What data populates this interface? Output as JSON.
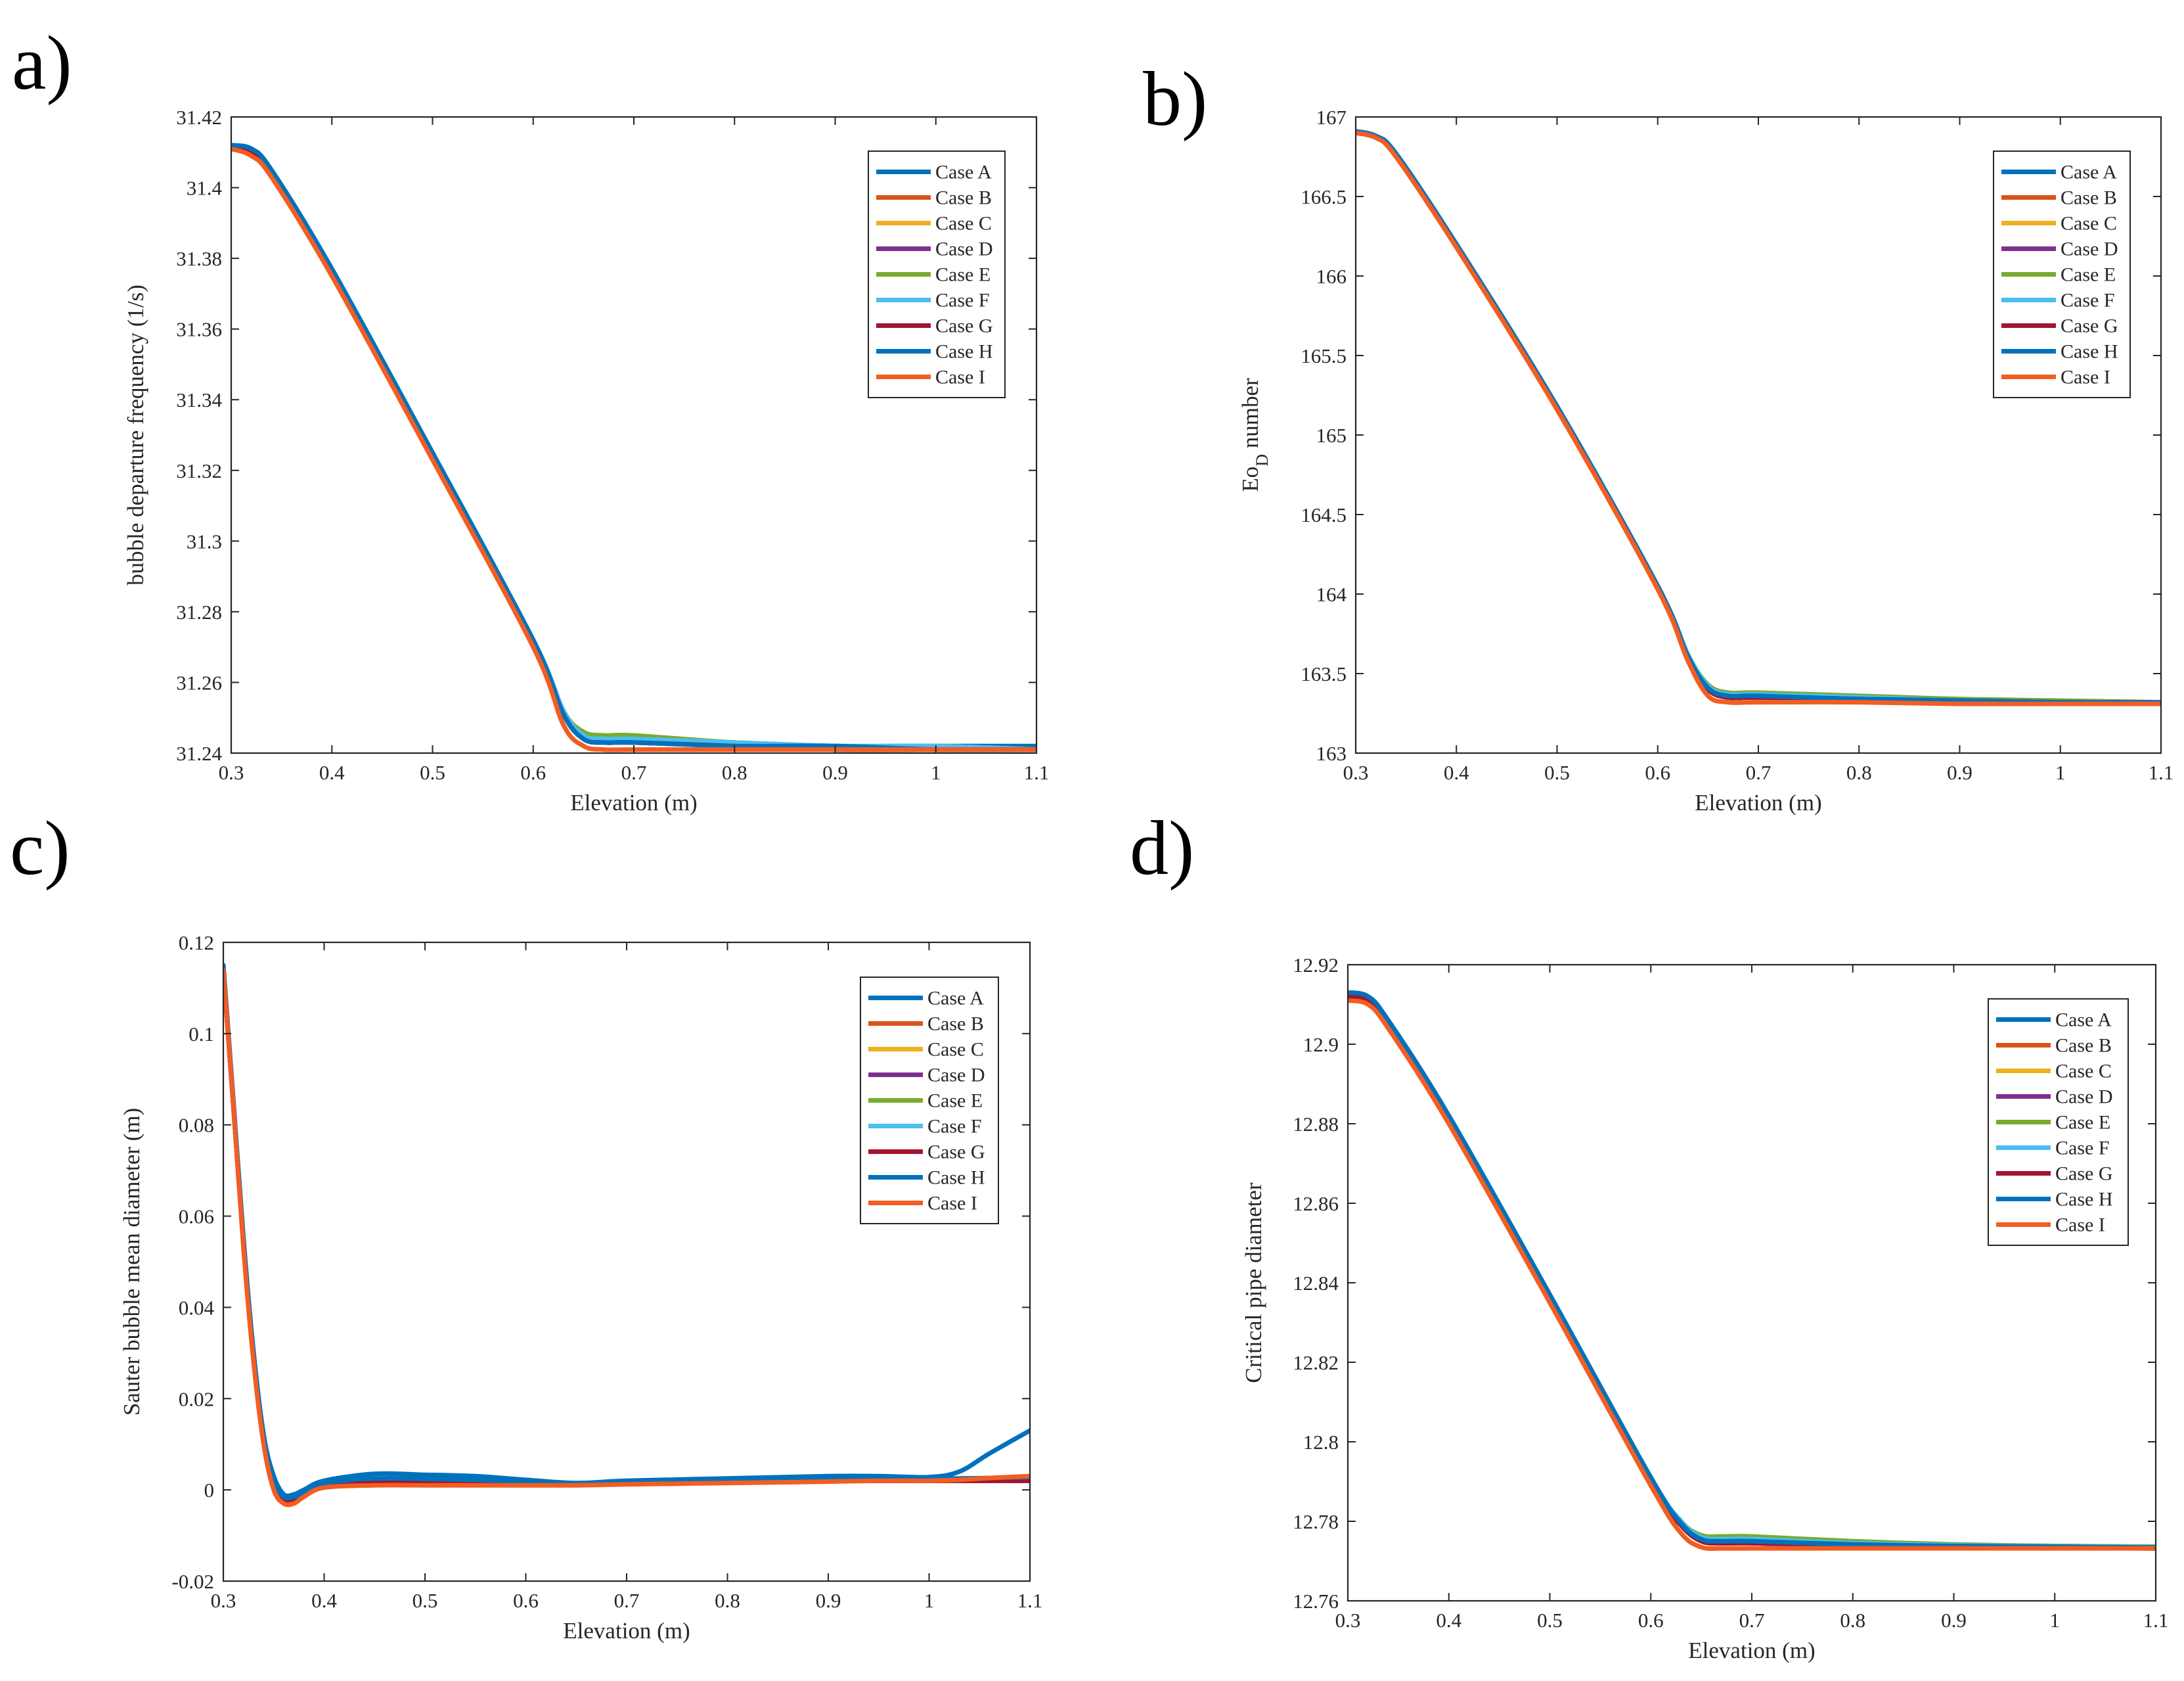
{
  "figure": {
    "panels": [
      "a)",
      "b)",
      "c)",
      "d)"
    ]
  },
  "legend": [
    "Case A",
    "Case B",
    "Case C",
    "Case D",
    "Case E",
    "Case F",
    "Case G",
    "Case H",
    "Case I"
  ],
  "colors": {
    "Case A": "#0072bd",
    "Case B": "#d95319",
    "Case C": "#edb120",
    "Case D": "#7e2f8e",
    "Case E": "#77ac30",
    "Case F": "#4dbeee",
    "Case G": "#a2142f",
    "Case H": "#0072bd",
    "Case I": "#f25d22",
    "axis": "#262626"
  },
  "chart_data": [
    {
      "type": "line",
      "panel": "a)",
      "xlabel": "Elevation (m)",
      "ylabel": "bubble departure frequency (1/s)",
      "xlim": [
        0.3,
        1.1
      ],
      "ylim": [
        31.24,
        31.42
      ],
      "xticks": [
        0.3,
        0.4,
        0.5,
        0.6,
        0.7,
        0.8,
        0.9,
        1,
        1.1
      ],
      "xtick_labels": [
        "0.3",
        "0.4",
        "0.5",
        "0.6",
        "0.7",
        "0.8",
        "0.9",
        "1",
        "1.1"
      ],
      "yticks": [
        31.24,
        31.26,
        31.28,
        31.3,
        31.32,
        31.34,
        31.36,
        31.38,
        31.4,
        31.42
      ],
      "ytick_labels": [
        "31.24",
        "31.26",
        "31.28",
        "31.3",
        "31.32",
        "31.34",
        "31.36",
        "31.38",
        "31.4",
        "31.42"
      ],
      "legend_position": "top-right",
      "x": [
        0.3,
        0.32,
        0.34,
        0.4,
        0.5,
        0.6,
        0.63,
        0.65,
        0.67,
        0.7,
        0.8,
        0.9,
        1.0,
        1.1
      ],
      "series": [
        {
          "name": "Case A",
          "values": [
            31.412,
            31.411,
            31.405,
            31.377,
            31.325,
            31.272,
            31.252,
            31.245,
            31.244,
            31.244,
            31.243,
            31.242,
            31.242,
            31.242
          ]
        },
        {
          "name": "Case B",
          "values": [
            31.411,
            31.41,
            31.404,
            31.376,
            31.324,
            31.271,
            31.251,
            31.244,
            31.243,
            31.243,
            31.242,
            31.241,
            31.241,
            31.241
          ]
        },
        {
          "name": "Case C",
          "values": [
            31.411,
            31.41,
            31.404,
            31.376,
            31.324,
            31.271,
            31.251,
            31.244,
            31.243,
            31.243,
            31.242,
            31.241,
            31.241,
            31.241
          ]
        },
        {
          "name": "Case D",
          "values": [
            31.411,
            31.41,
            31.404,
            31.376,
            31.324,
            31.271,
            31.251,
            31.244,
            31.243,
            31.243,
            31.242,
            31.241,
            31.241,
            31.241
          ]
        },
        {
          "name": "Case E",
          "values": [
            31.412,
            31.411,
            31.405,
            31.377,
            31.325,
            31.272,
            31.252,
            31.246,
            31.245,
            31.245,
            31.243,
            31.242,
            31.242,
            31.241
          ]
        },
        {
          "name": "Case F",
          "values": [
            31.412,
            31.411,
            31.405,
            31.377,
            31.325,
            31.272,
            31.252,
            31.245,
            31.244,
            31.244,
            31.243,
            31.242,
            31.242,
            31.241
          ]
        },
        {
          "name": "Case G",
          "values": [
            31.411,
            31.41,
            31.404,
            31.376,
            31.324,
            31.271,
            31.251,
            31.244,
            31.243,
            31.243,
            31.242,
            31.241,
            31.241,
            31.241
          ]
        },
        {
          "name": "Case H",
          "values": [
            31.412,
            31.411,
            31.405,
            31.377,
            31.325,
            31.272,
            31.251,
            31.244,
            31.243,
            31.243,
            31.242,
            31.242,
            31.241,
            31.241
          ]
        },
        {
          "name": "Case I",
          "values": [
            31.411,
            31.409,
            31.403,
            31.375,
            31.323,
            31.27,
            31.248,
            31.242,
            31.241,
            31.241,
            31.241,
            31.241,
            31.241,
            31.241
          ]
        }
      ]
    },
    {
      "type": "line",
      "panel": "b)",
      "xlabel": "Elevation (m)",
      "ylabel_main": "Eo",
      "ylabel_sub": "D",
      "ylabel_suffix": " number",
      "xlim": [
        0.3,
        1.1
      ],
      "ylim": [
        163,
        167
      ],
      "xticks": [
        0.3,
        0.4,
        0.5,
        0.6,
        0.7,
        0.8,
        0.9,
        1,
        1.1
      ],
      "xtick_labels": [
        "0.3",
        "0.4",
        "0.5",
        "0.6",
        "0.7",
        "0.8",
        "0.9",
        "1",
        "1.1"
      ],
      "yticks": [
        163,
        163.5,
        164,
        164.5,
        165,
        165.5,
        166,
        166.5,
        167
      ],
      "ytick_labels": [
        "163",
        "163.5",
        "164",
        "164.5",
        "165",
        "165.5",
        "166",
        "166.5",
        "167"
      ],
      "legend_position": "top-right",
      "x": [
        0.3,
        0.32,
        0.34,
        0.4,
        0.5,
        0.6,
        0.63,
        0.65,
        0.67,
        0.7,
        0.8,
        0.9,
        1.0,
        1.1
      ],
      "series": [
        {
          "name": "Case A",
          "values": [
            166.91,
            166.88,
            166.77,
            166.2,
            165.18,
            164.05,
            163.62,
            163.42,
            163.37,
            163.37,
            163.35,
            163.33,
            163.32,
            163.32
          ]
        },
        {
          "name": "Case B",
          "values": [
            166.9,
            166.87,
            166.76,
            166.19,
            165.17,
            164.04,
            163.6,
            163.4,
            163.35,
            163.35,
            163.34,
            163.33,
            163.32,
            163.31
          ]
        },
        {
          "name": "Case C",
          "values": [
            166.9,
            166.87,
            166.76,
            166.19,
            165.17,
            164.04,
            163.6,
            163.4,
            163.35,
            163.35,
            163.34,
            163.33,
            163.32,
            163.31
          ]
        },
        {
          "name": "Case D",
          "values": [
            166.9,
            166.87,
            166.76,
            166.19,
            165.17,
            164.04,
            163.6,
            163.4,
            163.35,
            163.35,
            163.34,
            163.33,
            163.32,
            163.31
          ]
        },
        {
          "name": "Case E",
          "values": [
            166.91,
            166.88,
            166.77,
            166.2,
            165.18,
            164.05,
            163.62,
            163.43,
            163.38,
            163.38,
            163.36,
            163.34,
            163.33,
            163.32
          ]
        },
        {
          "name": "Case F",
          "values": [
            166.91,
            166.88,
            166.77,
            166.2,
            165.18,
            164.05,
            163.62,
            163.42,
            163.37,
            163.37,
            163.35,
            163.33,
            163.32,
            163.32
          ]
        },
        {
          "name": "Case G",
          "values": [
            166.9,
            166.87,
            166.76,
            166.19,
            165.17,
            164.04,
            163.6,
            163.4,
            163.35,
            163.35,
            163.34,
            163.33,
            163.32,
            163.31
          ]
        },
        {
          "name": "Case H",
          "values": [
            166.91,
            166.88,
            166.77,
            166.2,
            165.18,
            164.05,
            163.61,
            163.41,
            163.36,
            163.36,
            163.34,
            163.33,
            163.32,
            163.32
          ]
        },
        {
          "name": "Case I",
          "values": [
            166.9,
            166.87,
            166.75,
            166.18,
            165.16,
            164.03,
            163.58,
            163.36,
            163.32,
            163.32,
            163.32,
            163.31,
            163.31,
            163.31
          ]
        }
      ]
    },
    {
      "type": "line",
      "panel": "c)",
      "xlabel": "Elevation (m)",
      "ylabel": "Sauter bubble mean diameter (m)",
      "xlim": [
        0.3,
        1.1
      ],
      "ylim": [
        -0.02,
        0.12
      ],
      "xticks": [
        0.3,
        0.4,
        0.5,
        0.6,
        0.7,
        0.8,
        0.9,
        1,
        1.1
      ],
      "xtick_labels": [
        "0.3",
        "0.4",
        "0.5",
        "0.6",
        "0.7",
        "0.8",
        "0.9",
        "1",
        "1.1"
      ],
      "yticks": [
        -0.02,
        0,
        0.02,
        0.04,
        0.06,
        0.08,
        0.1,
        0.12
      ],
      "ytick_labels": [
        "-0.02",
        "0",
        "0.02",
        "0.04",
        "0.06",
        "0.08",
        "0.1",
        "0.12"
      ],
      "legend_position": "top-right",
      "x": [
        0.3,
        0.31,
        0.32,
        0.33,
        0.34,
        0.35,
        0.36,
        0.37,
        0.38,
        0.4,
        0.45,
        0.5,
        0.55,
        0.6,
        0.65,
        0.7,
        0.8,
        0.9,
        0.95,
        1.0,
        1.03,
        1.06,
        1.1
      ],
      "series": [
        {
          "name": "Case A",
          "values": [
            0.115,
            0.085,
            0.055,
            0.03,
            0.012,
            0.003,
            -0.001,
            -0.001,
            0.0,
            0.002,
            0.0035,
            0.0033,
            0.003,
            0.0022,
            0.0015,
            0.002,
            0.0025,
            0.003,
            0.003,
            0.0028,
            0.004,
            0.008,
            0.013
          ]
        },
        {
          "name": "Case B",
          "values": [
            0.114,
            0.084,
            0.054,
            0.029,
            0.011,
            0.001,
            -0.002,
            -0.002,
            -0.001,
            0.001,
            0.0015,
            0.0015,
            0.0015,
            0.0013,
            0.0012,
            0.0015,
            0.0018,
            0.002,
            0.002,
            0.002,
            0.002,
            0.002,
            0.002
          ]
        },
        {
          "name": "Case C",
          "values": [
            0.114,
            0.084,
            0.054,
            0.029,
            0.011,
            0.001,
            -0.002,
            -0.002,
            -0.001,
            0.001,
            0.0015,
            0.0015,
            0.0015,
            0.0013,
            0.0012,
            0.0015,
            0.0018,
            0.002,
            0.002,
            0.002,
            0.002,
            0.002,
            0.002
          ]
        },
        {
          "name": "Case D",
          "values": [
            0.114,
            0.084,
            0.054,
            0.029,
            0.011,
            0.001,
            -0.002,
            -0.002,
            -0.001,
            0.001,
            0.0015,
            0.0015,
            0.0015,
            0.0013,
            0.0012,
            0.0015,
            0.0018,
            0.002,
            0.002,
            0.002,
            0.002,
            0.002,
            0.002
          ]
        },
        {
          "name": "Case E",
          "values": [
            0.114,
            0.084,
            0.054,
            0.029,
            0.011,
            0.001,
            -0.002,
            -0.002,
            -0.001,
            0.0012,
            0.0018,
            0.0018,
            0.0017,
            0.0014,
            0.0012,
            0.0016,
            0.002,
            0.0022,
            0.0022,
            0.0022,
            0.0022,
            0.0022,
            0.0022
          ]
        },
        {
          "name": "Case F",
          "values": [
            0.114,
            0.084,
            0.054,
            0.029,
            0.011,
            0.001,
            -0.002,
            -0.002,
            -0.001,
            0.0012,
            0.0018,
            0.0018,
            0.0017,
            0.0014,
            0.0012,
            0.0016,
            0.002,
            0.0022,
            0.0022,
            0.0022,
            0.0022,
            0.0022,
            0.0022
          ]
        },
        {
          "name": "Case G",
          "values": [
            0.114,
            0.084,
            0.054,
            0.029,
            0.011,
            0.001,
            -0.002,
            -0.002,
            -0.001,
            0.001,
            0.0015,
            0.0015,
            0.0015,
            0.0013,
            0.0012,
            0.0015,
            0.0018,
            0.002,
            0.002,
            0.002,
            0.002,
            0.002,
            0.002
          ]
        },
        {
          "name": "Case H",
          "values": [
            0.115,
            0.085,
            0.055,
            0.03,
            0.012,
            0.002,
            -0.0015,
            -0.0015,
            -0.0005,
            0.0015,
            0.0025,
            0.0024,
            0.0022,
            0.0018,
            0.0013,
            0.0017,
            0.0021,
            0.0024,
            0.0024,
            0.0024,
            0.0025,
            0.0026,
            0.0028
          ]
        },
        {
          "name": "Case I",
          "values": [
            0.114,
            0.084,
            0.053,
            0.028,
            0.01,
            0.0,
            -0.003,
            -0.003,
            -0.0015,
            0.0005,
            0.001,
            0.001,
            0.001,
            0.001,
            0.001,
            0.0012,
            0.0015,
            0.0018,
            0.002,
            0.002,
            0.0022,
            0.0026,
            0.003
          ]
        }
      ]
    },
    {
      "type": "line",
      "panel": "d)",
      "xlabel": "Elevation (m)",
      "ylabel": "Critical pipe diameter",
      "xlim": [
        0.3,
        1.1
      ],
      "ylim": [
        12.76,
        12.92
      ],
      "xticks": [
        0.3,
        0.4,
        0.5,
        0.6,
        0.7,
        0.8,
        0.9,
        1,
        1.1
      ],
      "xtick_labels": [
        "0.3",
        "0.4",
        "0.5",
        "0.6",
        "0.7",
        "0.8",
        "0.9",
        "1",
        "1.1"
      ],
      "yticks": [
        12.76,
        12.78,
        12.8,
        12.82,
        12.84,
        12.86,
        12.88,
        12.9,
        12.92
      ],
      "ytick_labels": [
        "12.76",
        "12.78",
        "12.8",
        "12.82",
        "12.84",
        "12.86",
        "12.88",
        "12.9",
        "12.92"
      ],
      "legend_position": "top-right",
      "x": [
        0.3,
        0.32,
        0.34,
        0.4,
        0.5,
        0.6,
        0.63,
        0.65,
        0.67,
        0.7,
        0.8,
        0.9,
        1.0,
        1.1
      ],
      "series": [
        {
          "name": "Case A",
          "values": [
            12.913,
            12.912,
            12.906,
            12.882,
            12.837,
            12.791,
            12.78,
            12.776,
            12.775,
            12.775,
            12.7745,
            12.774,
            12.7738,
            12.7736
          ]
        },
        {
          "name": "Case B",
          "values": [
            12.912,
            12.911,
            12.905,
            12.881,
            12.836,
            12.79,
            12.779,
            12.775,
            12.7745,
            12.7745,
            12.774,
            12.7735,
            12.7733,
            12.7732
          ]
        },
        {
          "name": "Case C",
          "values": [
            12.912,
            12.911,
            12.905,
            12.881,
            12.836,
            12.79,
            12.779,
            12.775,
            12.7745,
            12.7745,
            12.774,
            12.7735,
            12.7733,
            12.7732
          ]
        },
        {
          "name": "Case D",
          "values": [
            12.912,
            12.911,
            12.905,
            12.881,
            12.836,
            12.79,
            12.779,
            12.775,
            12.7745,
            12.7745,
            12.774,
            12.7735,
            12.7733,
            12.7732
          ]
        },
        {
          "name": "Case E",
          "values": [
            12.913,
            12.912,
            12.906,
            12.882,
            12.837,
            12.791,
            12.78,
            12.7765,
            12.7762,
            12.7762,
            12.775,
            12.7742,
            12.7738,
            12.7736
          ]
        },
        {
          "name": "Case F",
          "values": [
            12.913,
            12.912,
            12.906,
            12.882,
            12.837,
            12.791,
            12.78,
            12.776,
            12.7755,
            12.7755,
            12.7745,
            12.774,
            12.7737,
            12.7735
          ]
        },
        {
          "name": "Case G",
          "values": [
            12.912,
            12.911,
            12.905,
            12.881,
            12.836,
            12.79,
            12.779,
            12.775,
            12.7745,
            12.7745,
            12.774,
            12.7735,
            12.7733,
            12.7732
          ]
        },
        {
          "name": "Case H",
          "values": [
            12.913,
            12.912,
            12.906,
            12.882,
            12.837,
            12.791,
            12.7795,
            12.7755,
            12.775,
            12.775,
            12.7742,
            12.7738,
            12.7736,
            12.7734
          ]
        },
        {
          "name": "Case I",
          "values": [
            12.911,
            12.91,
            12.904,
            12.88,
            12.835,
            12.789,
            12.777,
            12.7735,
            12.7732,
            12.7732,
            12.7732,
            12.7732,
            12.7732,
            12.7732
          ]
        }
      ]
    }
  ]
}
